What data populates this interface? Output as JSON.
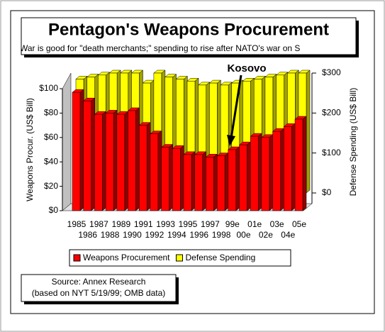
{
  "chart_data": {
    "type": "bar3d",
    "title": "Pentagon's Weapons Procurement",
    "subtitle": "War is good for \"death merchants;\" spending to rise after NATO's war on S",
    "ylabel": "Weapons Procur. (US$ Bill)",
    "y2label": "Defense Spending (US$ Bill)",
    "annotation": "Kosovo",
    "source": [
      "Source: Annex Research",
      "(based on NYT 5/19/99; OMB data)"
    ],
    "categories": [
      "1985",
      "1986",
      "1987",
      "1988",
      "1989",
      "1990",
      "1991",
      "1992",
      "1993",
      "1994",
      "1995",
      "1996",
      "1997",
      "1998",
      "99e",
      "00e",
      "01e",
      "02e",
      "03e",
      "04e",
      "05e"
    ],
    "series": [
      {
        "name": "Weapons Procurement",
        "color": "#ff0000",
        "values": [
          97,
          90,
          79,
          80,
          79,
          82,
          70,
          63,
          52,
          51,
          46,
          46,
          44,
          45,
          50,
          54,
          61,
          60,
          65,
          69,
          75
        ]
      },
      {
        "name": "Defense Spending",
        "color": "#ffff00",
        "axis": "y2",
        "values": [
          285,
          290,
          295,
          300,
          300,
          300,
          275,
          300,
          290,
          285,
          280,
          270,
          275,
          270,
          275,
          280,
          285,
          290,
          295,
          300,
          300
        ]
      }
    ],
    "ylim": [
      0,
      100
    ],
    "yticks": [
      {
        "value": 0,
        "label": "$0"
      },
      {
        "value": 20,
        "label": "$20"
      },
      {
        "value": 40,
        "label": "$40"
      },
      {
        "value": 60,
        "label": "$60"
      },
      {
        "value": 80,
        "label": "$80"
      },
      {
        "value": 100,
        "label": "$100"
      }
    ],
    "y2lim": [
      0,
      300
    ],
    "y2ticks": [
      {
        "value": 0,
        "label": "$0"
      },
      {
        "value": 100,
        "label": "$100"
      },
      {
        "value": 200,
        "label": "$200"
      },
      {
        "value": 300,
        "label": "$300"
      }
    ],
    "legend": "bottom"
  }
}
